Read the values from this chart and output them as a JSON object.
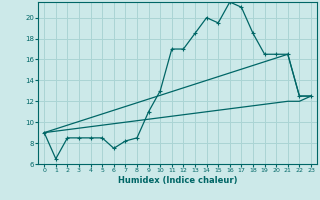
{
  "xlabel": "Humidex (Indice chaleur)",
  "ylabel": "",
  "xlim": [
    -0.5,
    23.5
  ],
  "ylim": [
    6,
    21.5
  ],
  "yticks": [
    6,
    8,
    10,
    12,
    14,
    16,
    18,
    20
  ],
  "xticks": [
    0,
    1,
    2,
    3,
    4,
    5,
    6,
    7,
    8,
    9,
    10,
    11,
    12,
    13,
    14,
    15,
    16,
    17,
    18,
    19,
    20,
    21,
    22,
    23
  ],
  "background_color": "#cce9e9",
  "grid_color": "#aad4d4",
  "line_color": "#006666",
  "lines": [
    {
      "x": [
        0,
        1,
        2,
        3,
        4,
        5,
        6,
        7,
        8,
        9,
        10,
        11,
        12,
        13,
        14,
        15,
        16,
        17,
        18,
        19,
        20,
        21,
        22,
        23
      ],
      "y": [
        9,
        6.5,
        8.5,
        8.5,
        8.5,
        8.5,
        7.5,
        8.2,
        8.5,
        11.0,
        13.0,
        17.0,
        17.0,
        18.5,
        20.0,
        19.5,
        21.5,
        21.0,
        18.5,
        16.5,
        16.5,
        16.5,
        12.5,
        12.5
      ],
      "marker": "+"
    },
    {
      "x": [
        0,
        21,
        22,
        23
      ],
      "y": [
        9,
        16.5,
        12.5,
        12.5
      ],
      "marker": null
    },
    {
      "x": [
        0,
        21,
        22,
        23
      ],
      "y": [
        9,
        12.0,
        12.0,
        12.5
      ],
      "marker": null
    }
  ]
}
